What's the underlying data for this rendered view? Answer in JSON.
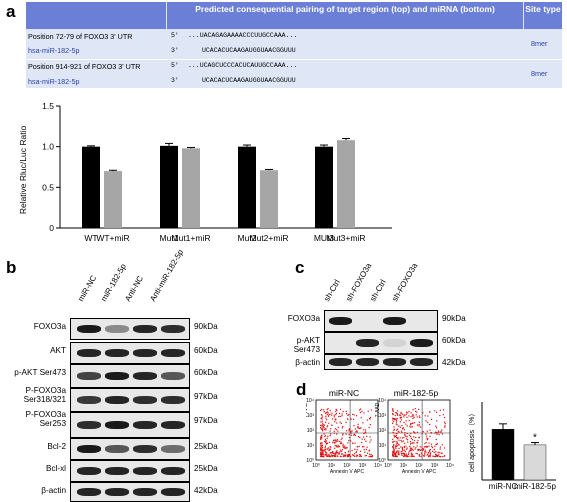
{
  "panel_labels": {
    "a": "a",
    "b": "b",
    "c": "c",
    "d": "d"
  },
  "table": {
    "header_pairing": "Predicted consequential pairing of target region (top) and miRNA (bottom)",
    "header_site": "Site type",
    "rows": [
      {
        "position": "Position 72-79 of FOXO3 3' UTR",
        "mirna": "hsa-miR-182-5p",
        "top_prefix": "5'",
        "top_seq": "...UACAGAGAAAACCCUUGCCAAA...",
        "bottom_prefix": "3'",
        "bottom_seq": "UCACACUCAAGAUGGUAACGGUUU",
        "site": "8mer"
      },
      {
        "position": "Position 914-921 of FOXO3 3' UTR",
        "mirna": "hsa-miR-182-5p",
        "top_prefix": "5'",
        "top_seq": "...UCAGCUCCCACUCAUUGCCAAA...",
        "bottom_prefix": "3'",
        "bottom_seq": "UCACACUCAAGAUGGUAACGGUUU",
        "site": "8mer"
      }
    ]
  },
  "chart_data": {
    "type": "bar",
    "ylabel": "Relative Rluc/Luc Ratio",
    "ylim": [
      0,
      1.5
    ],
    "yticks": [
      "0",
      "0.5",
      "1.0",
      "1.5"
    ],
    "categories": [
      "WT",
      "WT+miR",
      "Mut1",
      "Mut1+miR",
      "Mut2",
      "Mut2+miR",
      "MUt3",
      "Mut3+miR"
    ],
    "values": [
      1.0,
      0.7,
      1.01,
      0.98,
      1.0,
      0.71,
      1.0,
      1.08
    ],
    "errors": [
      0.01,
      0.01,
      0.03,
      0.01,
      0.02,
      0.01,
      0.02,
      0.02
    ],
    "colors": [
      "#000000",
      "#a6a6a6",
      "#000000",
      "#a6a6a6",
      "#000000",
      "#a6a6a6",
      "#000000",
      "#a6a6a6"
    ]
  },
  "blot_b": {
    "lanes": [
      "miR-NC",
      "miR-182-5p",
      "Anti-NC",
      "Anti-miR-182-5p"
    ],
    "rows": [
      {
        "label": "FOXO3a",
        "kda": "90kDa"
      },
      {
        "label": "AKT",
        "kda": "60kDa"
      },
      {
        "label": "p-AKT Ser473",
        "kda": "60kDa"
      },
      {
        "label": "P-FOXO3a Ser318/321",
        "kda": "97kDa"
      },
      {
        "label": "P-FOXO3a Ser253",
        "kda": "97kDa"
      },
      {
        "label": "Bcl-2",
        "kda": "25kDa"
      },
      {
        "label": "Bcl-xl",
        "kda": "25kDa"
      },
      {
        "label": "β-actin",
        "kda": "42kDa"
      }
    ]
  },
  "blot_c": {
    "lanes": [
      "sh-Ctrl",
      "sh-FOXO3a",
      "sh-Ctrl",
      "sh-FOXO3a"
    ],
    "rows": [
      {
        "label": "FOXO3a",
        "kda": "90kDa"
      },
      {
        "label": "p-AKT Ser473",
        "kda": "60kDa"
      },
      {
        "label": "β-actin",
        "kda": "42kDa"
      }
    ]
  },
  "flow": {
    "plot1_title": "miR-NC",
    "plot2_title": "miR-182-5p",
    "xlabel": "Annexin V APC",
    "ylabel": "7-AAD",
    "ticks": [
      "10⁰",
      "10¹",
      "10²",
      "10³",
      "10⁴"
    ]
  },
  "apoptosis_chart": {
    "type": "bar",
    "ylabel": "cell apoptosis（%）",
    "categories": [
      "miR-NC",
      "miR-182-5p"
    ],
    "values": [
      6.5,
      4.5
    ],
    "errors": [
      0.7,
      0.3
    ],
    "colors": [
      "#000000",
      "#d9d9d9"
    ],
    "significance": "*"
  }
}
